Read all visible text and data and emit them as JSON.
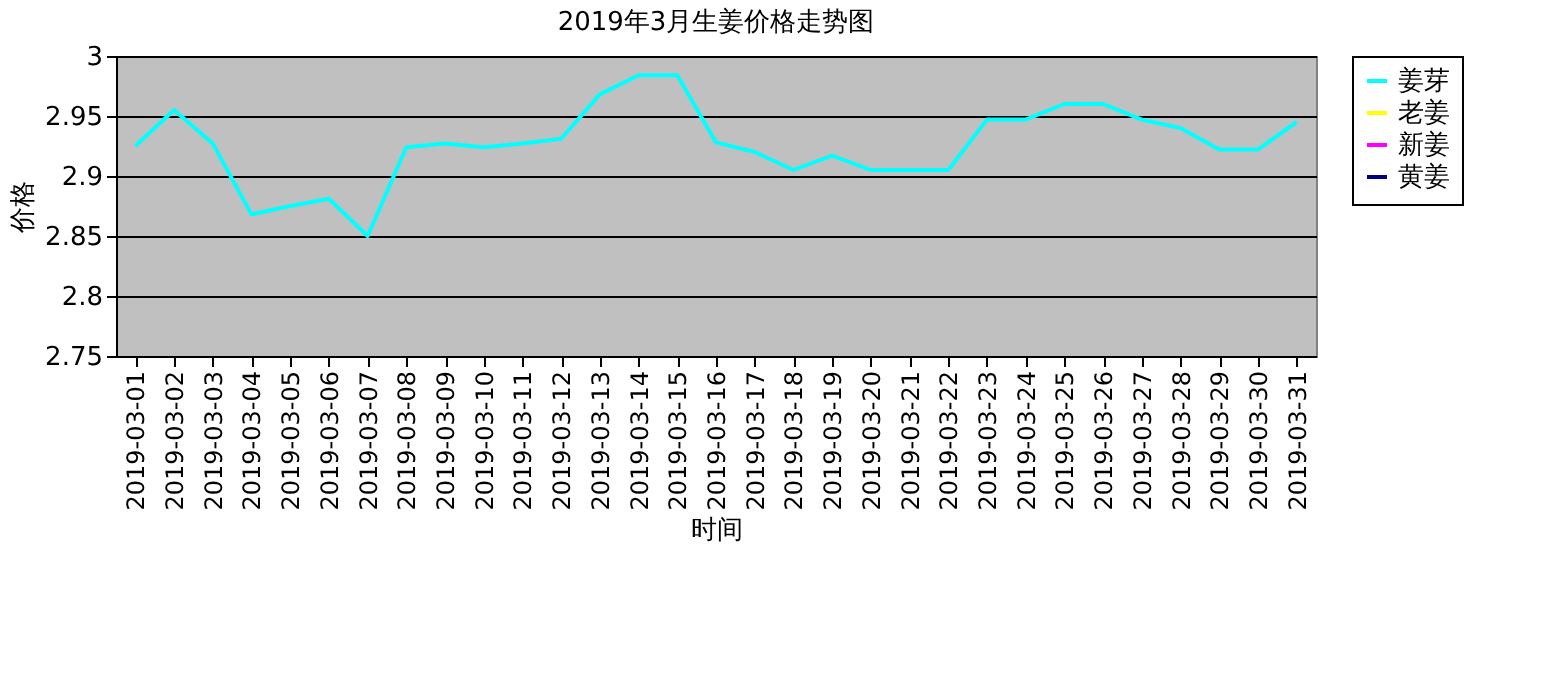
{
  "chart_data": {
    "type": "line",
    "title": "2019年3月生姜价格走势图",
    "xlabel": "时间",
    "ylabel": "价格",
    "categories": [
      "2019-03-01",
      "2019-03-02",
      "2019-03-03",
      "2019-03-04",
      "2019-03-05",
      "2019-03-06",
      "2019-03-07",
      "2019-03-08",
      "2019-03-09",
      "2019-03-10",
      "2019-03-11",
      "2019-03-12",
      "2019-03-13",
      "2019-03-14",
      "2019-03-15",
      "2019-03-16",
      "2019-03-17",
      "2019-03-18",
      "2019-03-19",
      "2019-03-20",
      "2019-03-21",
      "2019-03-22",
      "2019-03-23",
      "2019-03-24",
      "2019-03-25",
      "2019-03-26",
      "2019-03-27",
      "2019-03-28",
      "2019-03-29",
      "2019-03-30",
      "2019-03-31"
    ],
    "series": [
      {
        "name": "姜芽",
        "color": "#00ffff",
        "values": [
          2.925,
          2.955,
          2.927,
          2.868,
          2.875,
          2.881,
          2.85,
          2.924,
          2.927,
          2.924,
          2.927,
          2.931,
          2.968,
          2.984,
          2.984,
          2.928,
          2.92,
          2.905,
          2.917,
          2.905,
          2.905,
          2.905,
          2.947,
          2.947,
          2.96,
          2.96,
          2.947,
          2.94,
          2.922,
          2.922,
          2.945
        ]
      },
      {
        "name": "老姜",
        "color": "#ffff00",
        "values": [
          null,
          null,
          null,
          null,
          null,
          null,
          null,
          null,
          null,
          null,
          null,
          null,
          null,
          null,
          null,
          null,
          null,
          null,
          null,
          null,
          null,
          null,
          null,
          null,
          null,
          null,
          null,
          null,
          null,
          null,
          null
        ]
      },
      {
        "name": "新姜",
        "color": "#ff00ff",
        "values": [
          null,
          null,
          null,
          null,
          null,
          null,
          null,
          null,
          null,
          null,
          null,
          null,
          null,
          null,
          null,
          null,
          null,
          null,
          null,
          null,
          null,
          null,
          null,
          null,
          null,
          null,
          null,
          null,
          null,
          null,
          null
        ]
      },
      {
        "name": "黄姜",
        "color": "#000080",
        "values": [
          null,
          null,
          null,
          null,
          null,
          null,
          null,
          null,
          null,
          null,
          null,
          null,
          null,
          null,
          null,
          null,
          null,
          null,
          null,
          null,
          null,
          null,
          null,
          null,
          null,
          null,
          null,
          null,
          null,
          null,
          null
        ]
      }
    ],
    "ylim": [
      2.75,
      3
    ],
    "yticks": [
      2.75,
      2.8,
      2.85,
      2.9,
      2.95,
      3
    ],
    "grid": "y",
    "legend": "right",
    "marker": "none",
    "line_style": "solid"
  }
}
